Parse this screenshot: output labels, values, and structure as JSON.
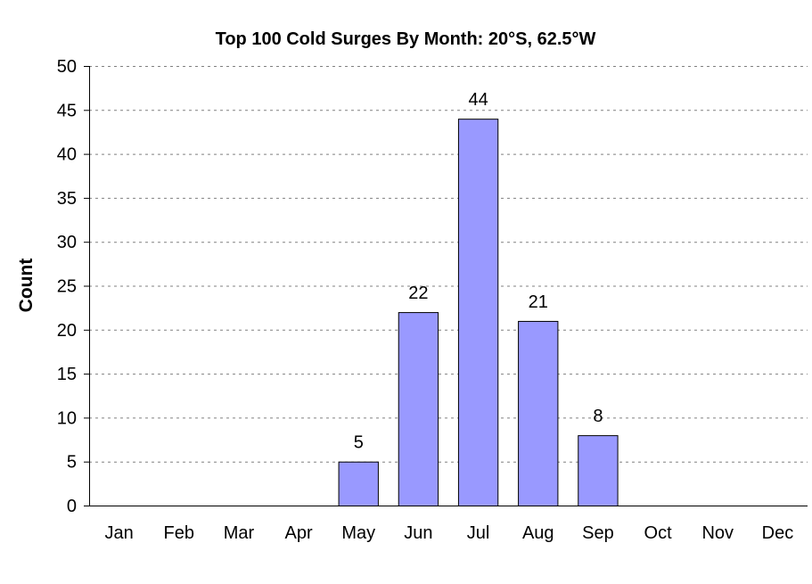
{
  "chart_data": {
    "type": "bar",
    "title": "Top 100 Cold Surges By Month: 20°S, 62.5°W",
    "xlabel": "",
    "ylabel": "Count",
    "categories": [
      "Jan",
      "Feb",
      "Mar",
      "Apr",
      "May",
      "Jun",
      "Jul",
      "Aug",
      "Sep",
      "Oct",
      "Nov",
      "Dec"
    ],
    "values": [
      0,
      0,
      0,
      0,
      5,
      22,
      44,
      21,
      8,
      0,
      0,
      0
    ],
    "data_labels": [
      "",
      "",
      "",
      "",
      "5",
      "22",
      "44",
      "21",
      "8",
      "",
      "",
      ""
    ],
    "ylim": [
      0,
      50
    ],
    "yticks": [
      "0",
      "5",
      "10",
      "15",
      "20",
      "25",
      "30",
      "35",
      "40",
      "45",
      "50"
    ],
    "grid": true,
    "legend": "none",
    "bar_color": "#9999FF"
  }
}
